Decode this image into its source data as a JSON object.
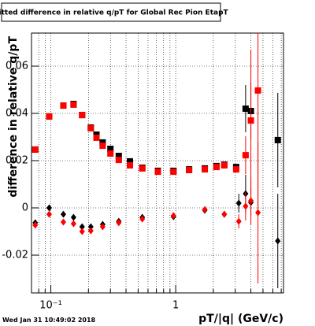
{
  "chart_data": {
    "type": "scatter",
    "title": "Fitted difference in relative q/pT for Global Rec Pion EtapT",
    "x_label": "pT/|q| (GeV/c)",
    "y_label": "difference in relative q/pT",
    "date": "Wed Jan 31 10:49:02 2018",
    "xlog": true,
    "grid": true,
    "xlim": [
      0.07,
      7.3
    ],
    "ylim": [
      -0.036,
      0.074
    ],
    "xticks": [
      {
        "value": 0.1,
        "label": "10⁻¹"
      },
      1
    ],
    "yticks": [
      -0.02,
      0,
      0.02,
      0.04,
      0.06
    ],
    "series": [
      {
        "color": "#000000",
        "marker": "square",
        "x": [
          0.075,
          0.097,
          0.126,
          0.152,
          0.178,
          0.209,
          0.232,
          0.26,
          0.3,
          0.35,
          0.43,
          0.54,
          0.72,
          0.96,
          1.28,
          1.71,
          2.12,
          2.45,
          3.05,
          3.63,
          4.0,
          6.57
        ],
        "values": [
          0.0247,
          0.0387,
          0.0433,
          0.044,
          0.0393,
          0.034,
          0.031,
          0.0277,
          0.025,
          0.022,
          0.0197,
          0.017,
          0.0157,
          0.0157,
          0.0163,
          0.0167,
          0.0177,
          0.0183,
          0.0173,
          0.042,
          0.041,
          0.0287
        ],
        "errors": [
          0.0003,
          0.0003,
          0.0003,
          0.0003,
          0.0003,
          0.0003,
          0.0003,
          0.0003,
          0.0003,
          0.0003,
          0.0003,
          0.0003,
          0.0003,
          0.0003,
          0.0003,
          0.0003,
          0.0003,
          0.0005,
          0.0008,
          0.01,
          0.012,
          0.02
        ]
      },
      {
        "color": "#ff0000",
        "marker": "square",
        "x": [
          0.075,
          0.097,
          0.126,
          0.152,
          0.178,
          0.209,
          0.232,
          0.26,
          0.3,
          0.35,
          0.43,
          0.54,
          0.72,
          0.96,
          1.28,
          1.71,
          2.12,
          2.45,
          3.05,
          3.63,
          4.0,
          4.56
        ],
        "values": [
          0.0247,
          0.0387,
          0.0433,
          0.0437,
          0.0393,
          0.0337,
          0.0297,
          0.0263,
          0.023,
          0.0203,
          0.018,
          0.0167,
          0.0153,
          0.0153,
          0.016,
          0.0163,
          0.0173,
          0.018,
          0.0163,
          0.0223,
          0.037,
          0.0497
        ],
        "errors": [
          0.0003,
          0.0003,
          0.0003,
          0.0003,
          0.0003,
          0.0003,
          0.0003,
          0.0003,
          0.0003,
          0.0003,
          0.0003,
          0.0003,
          0.0003,
          0.0003,
          0.0003,
          0.0003,
          0.0003,
          0.0005,
          0.0008,
          0.008,
          0.03,
          0.05
        ]
      },
      {
        "color": "#000000",
        "marker": "diamond",
        "x": [
          0.075,
          0.097,
          0.126,
          0.152,
          0.178,
          0.209,
          0.26,
          0.35,
          0.54,
          0.96,
          1.71,
          2.45,
          3.2,
          3.63,
          4.0,
          6.57
        ],
        "values": [
          -0.0063,
          0,
          -0.0027,
          -0.004,
          -0.008,
          -0.008,
          -0.007,
          -0.0057,
          -0.004,
          -0.0037,
          -0.001,
          -0.0027,
          0.002,
          0.006,
          0.0023,
          -0.014
        ],
        "errors": [
          0.0003,
          0.0003,
          0.0003,
          0.0003,
          0.0003,
          0.0003,
          0.0003,
          0.0003,
          0.0003,
          0.0003,
          0.0003,
          0.0005,
          0.004,
          0.008,
          0.006,
          0.02
        ]
      },
      {
        "color": "#ff0000",
        "marker": "diamond",
        "x": [
          0.075,
          0.097,
          0.126,
          0.152,
          0.178,
          0.209,
          0.26,
          0.35,
          0.54,
          0.96,
          1.71,
          2.45,
          3.2,
          3.63,
          4.0,
          4.56
        ],
        "values": [
          -0.0073,
          -0.0027,
          -0.006,
          -0.0067,
          -0.01,
          -0.0097,
          -0.008,
          -0.0063,
          -0.0047,
          -0.0033,
          -0.0007,
          -0.0027,
          -0.0057,
          0.0007,
          0.003,
          -0.002
        ],
        "errors": [
          0.0003,
          0.0003,
          0.0003,
          0.0003,
          0.0003,
          0.0003,
          0.0003,
          0.0003,
          0.0003,
          0.0003,
          0.0003,
          0.0005,
          0.003,
          0.006,
          0.01,
          0.03
        ]
      }
    ]
  }
}
